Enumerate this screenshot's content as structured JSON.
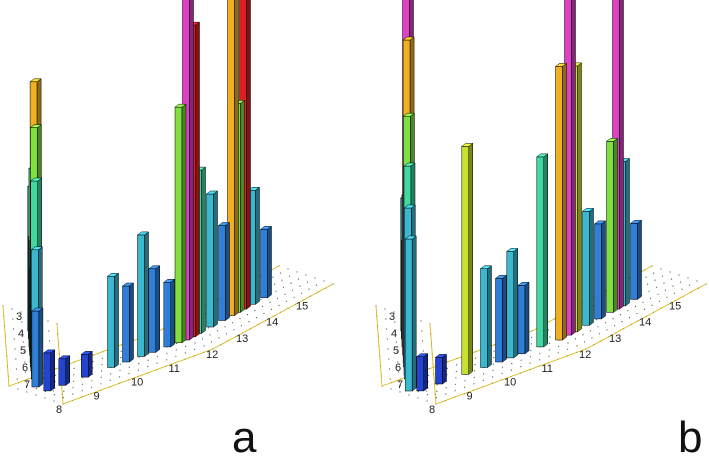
{
  "figure": {
    "colors": {
      "level_colors": [
        "#1a1aa8",
        "#2244d0",
        "#2f7fd8",
        "#3ab8d0",
        "#40d8a0",
        "#7fe040",
        "#c8e030",
        "#f0b020",
        "#e02020",
        "#e040c8"
      ],
      "base_edge": "#d4b200",
      "grid_dot": "#555555",
      "bar_edge": "#000000"
    }
  },
  "chart_data": [
    {
      "type": "bar",
      "panel_label": "a",
      "title": "",
      "xlabel": "",
      "ylabel": "",
      "y_tick_labels": [
        "3",
        "4",
        "5",
        "6",
        "7"
      ],
      "x_tick_labels": [
        "8",
        "9",
        "10",
        "11",
        "12",
        "13",
        "14",
        "15"
      ],
      "grid": true,
      "bars": [
        {
          "pos": 0.04,
          "value": 0.38,
          "level": 4
        },
        {
          "pos": 0.06,
          "value": 0.27,
          "level": 3
        },
        {
          "pos": 0.08,
          "value": 0.47,
          "level": 4
        },
        {
          "pos": 0.09,
          "value": 0.22,
          "level": 2
        },
        {
          "pos": 0.1,
          "value": 0.3,
          "level": 3
        },
        {
          "pos": 0.12,
          "value": 0.74,
          "level": 7
        },
        {
          "pos": 0.13,
          "value": 0.63,
          "level": 5
        },
        {
          "pos": 0.14,
          "value": 0.5,
          "level": 4
        },
        {
          "pos": 0.16,
          "value": 0.34,
          "level": 3
        },
        {
          "pos": 0.18,
          "value": 0.2,
          "level": 2
        },
        {
          "pos": 0.23,
          "value": 0.1,
          "level": 1
        },
        {
          "pos": 0.27,
          "value": 0.07,
          "level": 1
        },
        {
          "pos": 0.33,
          "value": 0.06,
          "level": 1
        },
        {
          "pos": 0.4,
          "value": 0.24,
          "level": 3
        },
        {
          "pos": 0.44,
          "value": 0.2,
          "level": 2
        },
        {
          "pos": 0.48,
          "value": 0.32,
          "level": 3
        },
        {
          "pos": 0.51,
          "value": 0.22,
          "level": 2
        },
        {
          "pos": 0.55,
          "value": 0.17,
          "level": 2
        },
        {
          "pos": 0.58,
          "value": 0.62,
          "level": 5
        },
        {
          "pos": 0.6,
          "value": 0.97,
          "level": 9
        },
        {
          "pos": 0.62,
          "value": 0.82,
          "level": 8
        },
        {
          "pos": 0.64,
          "value": 0.43,
          "level": 4
        },
        {
          "pos": 0.68,
          "value": 0.35,
          "level": 3
        },
        {
          "pos": 0.72,
          "value": 0.25,
          "level": 2
        },
        {
          "pos": 0.75,
          "value": 0.88,
          "level": 7
        },
        {
          "pos": 0.77,
          "value": 0.55,
          "level": 5
        },
        {
          "pos": 0.79,
          "value": 1.0,
          "level": 8
        },
        {
          "pos": 0.82,
          "value": 0.3,
          "level": 3
        },
        {
          "pos": 0.86,
          "value": 0.18,
          "level": 2
        }
      ]
    },
    {
      "type": "bar",
      "panel_label": "b",
      "title": "",
      "xlabel": "",
      "ylabel": "",
      "y_tick_labels": [
        "3",
        "4",
        "5",
        "6",
        "7"
      ],
      "x_tick_labels": [
        "8",
        "9",
        "10",
        "11",
        "12",
        "13",
        "14",
        "15"
      ],
      "grid": true,
      "bars": [
        {
          "pos": 0.04,
          "value": 0.35,
          "level": 3
        },
        {
          "pos": 0.06,
          "value": 0.26,
          "level": 2
        },
        {
          "pos": 0.08,
          "value": 0.4,
          "level": 3
        },
        {
          "pos": 0.1,
          "value": 0.98,
          "level": 9
        },
        {
          "pos": 0.12,
          "value": 0.85,
          "level": 7
        },
        {
          "pos": 0.13,
          "value": 0.66,
          "level": 5
        },
        {
          "pos": 0.15,
          "value": 0.55,
          "level": 4
        },
        {
          "pos": 0.16,
          "value": 0.45,
          "level": 3
        },
        {
          "pos": 0.19,
          "value": 0.4,
          "level": 3
        },
        {
          "pos": 0.23,
          "value": 0.09,
          "level": 1
        },
        {
          "pos": 0.28,
          "value": 0.07,
          "level": 1
        },
        {
          "pos": 0.35,
          "value": 0.6,
          "level": 6
        },
        {
          "pos": 0.4,
          "value": 0.26,
          "level": 3
        },
        {
          "pos": 0.44,
          "value": 0.22,
          "level": 2
        },
        {
          "pos": 0.47,
          "value": 0.28,
          "level": 3
        },
        {
          "pos": 0.5,
          "value": 0.18,
          "level": 2
        },
        {
          "pos": 0.55,
          "value": 0.5,
          "level": 4
        },
        {
          "pos": 0.6,
          "value": 0.72,
          "level": 7
        },
        {
          "pos": 0.63,
          "value": 0.96,
          "level": 9
        },
        {
          "pos": 0.65,
          "value": 0.7,
          "level": 6
        },
        {
          "pos": 0.69,
          "value": 0.3,
          "level": 3
        },
        {
          "pos": 0.73,
          "value": 0.25,
          "level": 2
        },
        {
          "pos": 0.77,
          "value": 0.45,
          "level": 5
        },
        {
          "pos": 0.79,
          "value": 1.0,
          "level": 9
        },
        {
          "pos": 0.81,
          "value": 0.38,
          "level": 3
        },
        {
          "pos": 0.85,
          "value": 0.2,
          "level": 2
        }
      ]
    }
  ]
}
